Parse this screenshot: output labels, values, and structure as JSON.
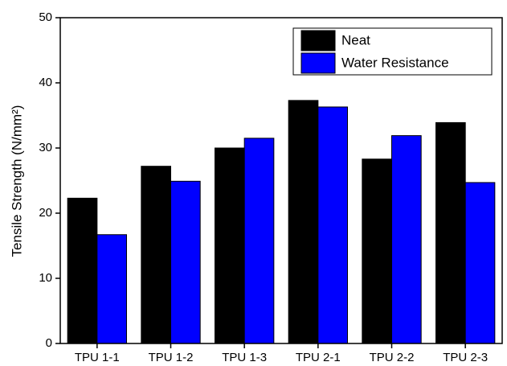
{
  "chart_data": {
    "type": "bar",
    "y_label": "Tensile Strength (N/mm²)",
    "categories": [
      "TPU 1-1",
      "TPU 1-2",
      "TPU 1-3",
      "TPU 2-1",
      "TPU 2-2",
      "TPU 2-3"
    ],
    "series": [
      {
        "name": "Neat",
        "color": "#000000",
        "values": [
          22.3,
          27.2,
          30.0,
          37.3,
          28.3,
          33.9
        ]
      },
      {
        "name": "Water Resistance",
        "color": "#0000ff",
        "values": [
          16.7,
          24.9,
          31.5,
          36.3,
          31.9,
          24.7
        ]
      }
    ],
    "ylim": [
      0,
      50
    ],
    "yticks": [
      0,
      10,
      20,
      30,
      40,
      50
    ],
    "legend": "upper right"
  }
}
